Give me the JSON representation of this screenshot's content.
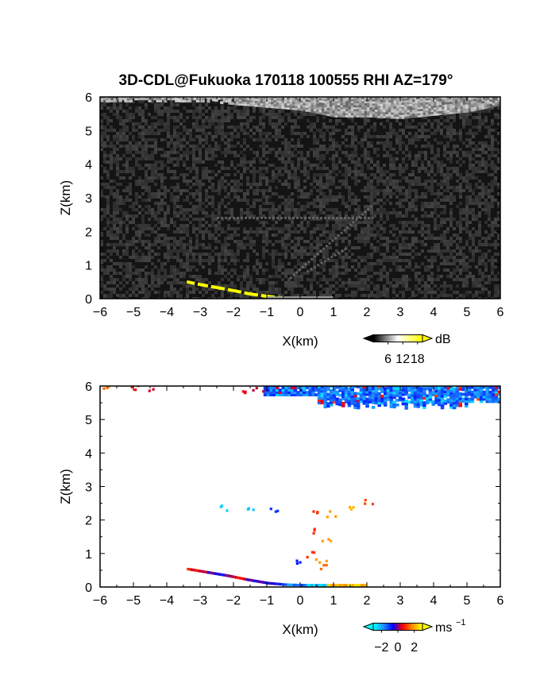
{
  "title": "3D-CDL@Fukuoka 170118 100555 RHI AZ=179°",
  "chart_data": [
    {
      "type": "heatmap",
      "panel": "reflectivity",
      "xlabel": "X(km)",
      "ylabel": "Z(km)",
      "xlim": [
        -6,
        6
      ],
      "ylim": [
        0,
        6
      ],
      "x_ticks": [
        "−6",
        "−5",
        "−4",
        "−3",
        "−2",
        "−1",
        "0",
        "1",
        "2",
        "3",
        "4",
        "5",
        "6"
      ],
      "y_ticks": [
        "0",
        "1",
        "2",
        "3",
        "4",
        "5",
        "6"
      ],
      "grid": false,
      "colorbar": {
        "unit": "dB",
        "ticks": [
          "6",
          "12",
          "18"
        ],
        "tick_values": [
          6,
          12,
          18
        ],
        "range": [
          0,
          20
        ],
        "colors": [
          "#000000",
          "#ffffff",
          "#ffff00"
        ]
      },
      "features": {
        "cloud_layer": {
          "x_range": [
            -6,
            6
          ],
          "z_range": [
            5.4,
            6.0
          ],
          "base_heights": [
            [
              -6,
              5.85
            ],
            [
              -3,
              5.85
            ],
            [
              0,
              5.6
            ],
            [
              1,
              5.4
            ],
            [
              2,
              5.4
            ],
            [
              3,
              5.35
            ],
            [
              4,
              5.45
            ],
            [
              5,
              5.55
            ],
            [
              6,
              5.75
            ]
          ]
        },
        "echo_lines": [
          {
            "from": [
              -2.5,
              2.4
            ],
            "to": [
              2.2,
              2.4
            ]
          },
          {
            "from": [
              -0.3,
              0.6
            ],
            "to": [
              2.2,
              2.8
            ]
          },
          {
            "from": [
              0.2,
              0.8
            ],
            "to": [
              1.4,
              1.5
            ]
          }
        ],
        "ground_clutter": [
          [
            -3.4,
            0.5
          ],
          [
            -3.0,
            0.42
          ],
          [
            -2.5,
            0.33
          ],
          [
            -2.0,
            0.24
          ],
          [
            -1.5,
            0.14
          ],
          [
            -1.0,
            0.07
          ],
          [
            -0.5,
            0.02
          ]
        ]
      }
    },
    {
      "type": "heatmap",
      "panel": "doppler_velocity",
      "xlabel": "X(km)",
      "ylabel": "Z(km)",
      "xlim": [
        -6,
        6
      ],
      "ylim": [
        0,
        6
      ],
      "x_ticks": [
        "−6",
        "−5",
        "−4",
        "−3",
        "−2",
        "−1",
        "0",
        "1",
        "2",
        "3",
        "4",
        "5",
        "6"
      ],
      "y_ticks": [
        "0",
        "1",
        "2",
        "3",
        "4",
        "5",
        "6"
      ],
      "grid": false,
      "colorbar": {
        "unit": "ms",
        "unit_exp": "−1",
        "ticks": [
          "−2",
          "0",
          "2"
        ],
        "tick_values": [
          -2,
          0,
          2
        ],
        "range": [
          -3,
          3
        ],
        "colors": [
          "#00ffff",
          "#1e90ff",
          "#0000ff",
          "#ff0000",
          "#ff8c00",
          "#ffff00"
        ]
      },
      "features": {
        "cloud_velocity": {
          "dominant": -1.5,
          "x_range": [
            -1.1,
            6
          ],
          "z_range": [
            5.3,
            6.0
          ]
        },
        "sparse_top": [
          [
            -5.8,
            5.97,
            1.5
          ],
          [
            -5.0,
            5.98,
            0.6
          ],
          [
            -4.4,
            5.98,
            0.4
          ],
          [
            -1.7,
            5.92,
            0.5
          ],
          [
            -1.3,
            5.9,
            0.3
          ]
        ],
        "layer_2_4km": [
          [
            -2.3,
            2.4,
            -2.5
          ],
          [
            -1.6,
            2.4,
            -2.4
          ],
          [
            -0.8,
            2.35,
            -1.0
          ],
          [
            0.4,
            2.3,
            1.0
          ],
          [
            0.9,
            2.2,
            2.0
          ],
          [
            1.6,
            2.45,
            2.2
          ],
          [
            2.0,
            2.6,
            1.2
          ]
        ],
        "low_cluster": [
          [
            -0.2,
            0.8,
            -0.8
          ],
          [
            0.3,
            1.0,
            1.0
          ],
          [
            0.6,
            0.8,
            2.0
          ],
          [
            0.7,
            0.65,
            1.5
          ],
          [
            0.5,
            1.7,
            1.0
          ],
          [
            0.8,
            1.5,
            2.0
          ]
        ],
        "ground_band": [
          [
            -3.4,
            0.5,
            0.5
          ],
          [
            -2.8,
            0.4,
            -0.5
          ],
          [
            -2.2,
            0.3,
            0.5
          ],
          [
            -1.6,
            0.18,
            -0.5
          ],
          [
            -1.0,
            0.08,
            -0.8
          ],
          [
            -0.4,
            0.03,
            -1.5
          ],
          [
            0.2,
            0.02,
            -2.5
          ],
          [
            0.8,
            0.02,
            2.2
          ],
          [
            1.4,
            0.02,
            2.4
          ],
          [
            1.9,
            0.02,
            2.2
          ]
        ]
      }
    }
  ]
}
